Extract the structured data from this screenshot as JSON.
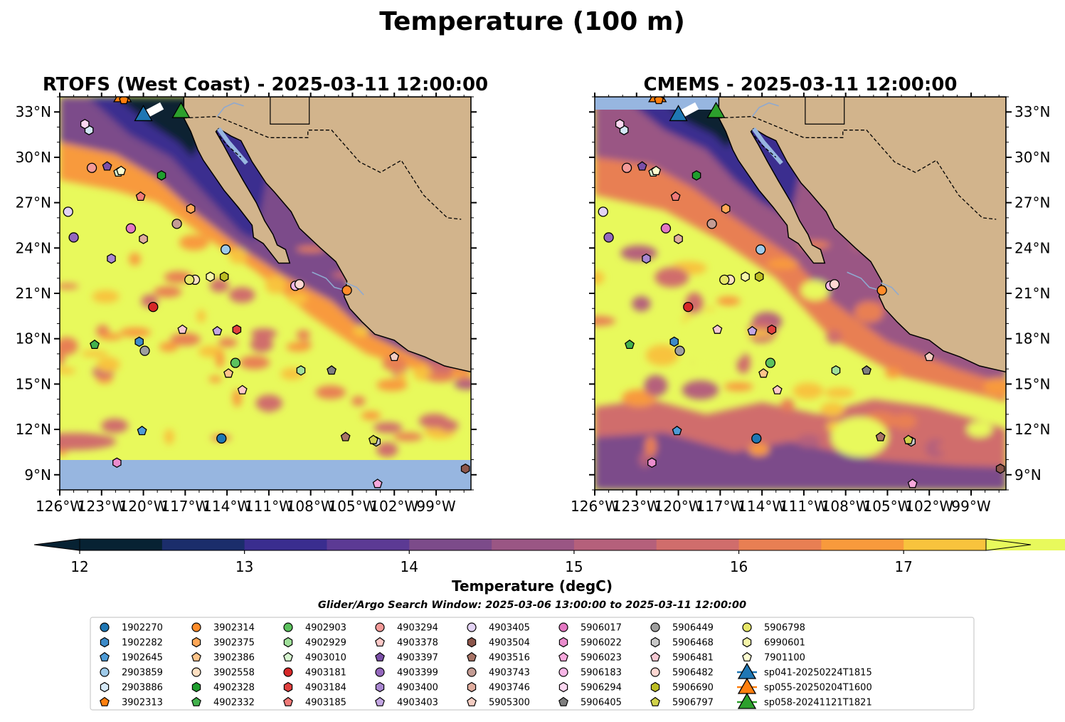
{
  "figure_title": "Temperature (100 m)",
  "colors": {
    "land": "#d2b48c",
    "ocean_fill": "#97b6e0",
    "coast": "#000000",
    "river": "#8fa9cf",
    "border": "#000000"
  },
  "chart_data": [
    {
      "type": "heatmap",
      "title": "RTOFS (West Coast) - 2025-03-11 12:00:00",
      "xlim": [
        -126,
        -96.5
      ],
      "ylim": [
        8,
        34
      ],
      "x_ticks": [
        "126°W",
        "123°W",
        "120°W",
        "117°W",
        "114°W",
        "111°W",
        "108°W",
        "105°W",
        "102°W",
        "99°W"
      ],
      "y_ticks": [
        "9°N",
        "12°N",
        "15°N",
        "18°N",
        "21°N",
        "24°N",
        "27°N",
        "30°N",
        "33°N"
      ],
      "no_data_below_lat": 10.1
    },
    {
      "type": "heatmap",
      "title": "CMEMS - 2025-03-11 12:00:00",
      "xlim": [
        -126,
        -96.5
      ],
      "ylim": [
        8,
        34
      ],
      "x_ticks": [
        "126°W",
        "123°W",
        "120°W",
        "117°W",
        "114°W",
        "111°W",
        "108°W",
        "105°W",
        "102°W",
        "99°W"
      ],
      "y_ticks": [
        "9°N",
        "12°N",
        "15°N",
        "18°N",
        "21°N",
        "24°N",
        "27°N",
        "30°N",
        "33°N"
      ],
      "no_data_above_lat": 33.2
    }
  ],
  "colorbar": {
    "label": "Temperature (degC)",
    "ticks": [
      "12",
      "13",
      "14",
      "15",
      "16",
      "17"
    ],
    "tick_values": [
      12,
      13,
      14,
      15,
      16,
      17
    ],
    "min": 12,
    "max": 17.5,
    "step": 0.5,
    "colors": [
      "#072233",
      "#1b2d6b",
      "#3a2d8f",
      "#5c3a94",
      "#7c4b8a",
      "#9a5684",
      "#b5607b",
      "#d06d6c",
      "#e87f53",
      "#f89a3c",
      "#f8c33d",
      "#e8f95c"
    ]
  },
  "search_window": "Glider/Argo Search Window: 2025-03-06 13:00:00 to 2025-03-11 12:00:00",
  "legend": {
    "items": [
      {
        "label": "1902270",
        "marker": "circle",
        "color": "#1f77b4"
      },
      {
        "label": "1902282",
        "marker": "hexagon",
        "color": "#3d8bc9"
      },
      {
        "label": "1902645",
        "marker": "pentagon",
        "color": "#4d9bd6"
      },
      {
        "label": "2903859",
        "marker": "circle",
        "color": "#9ecae9"
      },
      {
        "label": "2903886",
        "marker": "hexagon",
        "color": "#d4e8f7"
      },
      {
        "label": "3902313",
        "marker": "pentagon",
        "color": "#ff7f0e"
      },
      {
        "label": "3902314",
        "marker": "circle",
        "color": "#ff8c2a"
      },
      {
        "label": "3902375",
        "marker": "hexagon",
        "color": "#ffa757"
      },
      {
        "label": "3902386",
        "marker": "pentagon",
        "color": "#ffc48a"
      },
      {
        "label": "3902558",
        "marker": "circle",
        "color": "#ffe0c2"
      },
      {
        "label": "4902328",
        "marker": "hexagon",
        "color": "#1f9e2e"
      },
      {
        "label": "4902332",
        "marker": "pentagon",
        "color": "#43b24d"
      },
      {
        "label": "4902903",
        "marker": "circle",
        "color": "#5cc25e"
      },
      {
        "label": "4902929",
        "marker": "hexagon",
        "color": "#9fdf99"
      },
      {
        "label": "4903010",
        "marker": "pentagon",
        "color": "#d6f5cf"
      },
      {
        "label": "4903181",
        "marker": "circle",
        "color": "#d62728"
      },
      {
        "label": "4903184",
        "marker": "hexagon",
        "color": "#e0403f"
      },
      {
        "label": "4903185",
        "marker": "pentagon",
        "color": "#f07a78"
      },
      {
        "label": "4903294",
        "marker": "circle",
        "color": "#f49a98"
      },
      {
        "label": "4903378",
        "marker": "pentagon",
        "color": "#ffc9c7"
      },
      {
        "label": "4903397",
        "marker": "pentagon",
        "color": "#7b4fa8"
      },
      {
        "label": "4903399",
        "marker": "circle",
        "color": "#9467bd"
      },
      {
        "label": "4903400",
        "marker": "hexagon",
        "color": "#a987d1"
      },
      {
        "label": "4903403",
        "marker": "pentagon",
        "color": "#c3a6e3"
      },
      {
        "label": "4903405",
        "marker": "circle",
        "color": "#e3d3f5"
      },
      {
        "label": "4903504",
        "marker": "hexagon",
        "color": "#8c564b"
      },
      {
        "label": "4903516",
        "marker": "pentagon",
        "color": "#a87466"
      },
      {
        "label": "4903743",
        "marker": "circle",
        "color": "#c49c94"
      },
      {
        "label": "4903746",
        "marker": "hexagon",
        "color": "#e0ad9e"
      },
      {
        "label": "5905300",
        "marker": "pentagon",
        "color": "#f4cdc2"
      },
      {
        "label": "5906017",
        "marker": "circle",
        "color": "#e377c2"
      },
      {
        "label": "5906022",
        "marker": "hexagon",
        "color": "#ea8ccd"
      },
      {
        "label": "5906023",
        "marker": "pentagon",
        "color": "#f7a8dc"
      },
      {
        "label": "5906183",
        "marker": "circle",
        "color": "#f7b6e6"
      },
      {
        "label": "5906294",
        "marker": "hexagon",
        "color": "#fbd7f0"
      },
      {
        "label": "5906405",
        "marker": "pentagon",
        "color": "#7f7f7f"
      },
      {
        "label": "5906449",
        "marker": "circle",
        "color": "#9e9e9e"
      },
      {
        "label": "5906468",
        "marker": "hexagon",
        "color": "#c7c7c7"
      },
      {
        "label": "5906481",
        "marker": "pentagon",
        "color": "#f6c9d3"
      },
      {
        "label": "5906482",
        "marker": "circle",
        "color": "#ffd7d2"
      },
      {
        "label": "5906690",
        "marker": "hexagon",
        "color": "#bcbd22"
      },
      {
        "label": "5906797",
        "marker": "pentagon",
        "color": "#d1d24a"
      },
      {
        "label": "5906798",
        "marker": "circle",
        "color": "#e7e768"
      },
      {
        "label": "6990601",
        "marker": "hexagon",
        "color": "#f6f6a8"
      },
      {
        "label": "7901100",
        "marker": "pentagon",
        "color": "#fdfdd0"
      },
      {
        "label": "sp041-20250224T1815",
        "marker": "triangle",
        "color": "#1f77b4"
      },
      {
        "label": "sp055-20250204T1600",
        "marker": "triangle",
        "color": "#ff7f0e"
      },
      {
        "label": "sp058-20241121T1821",
        "marker": "triangle",
        "color": "#2ca02c"
      }
    ]
  }
}
